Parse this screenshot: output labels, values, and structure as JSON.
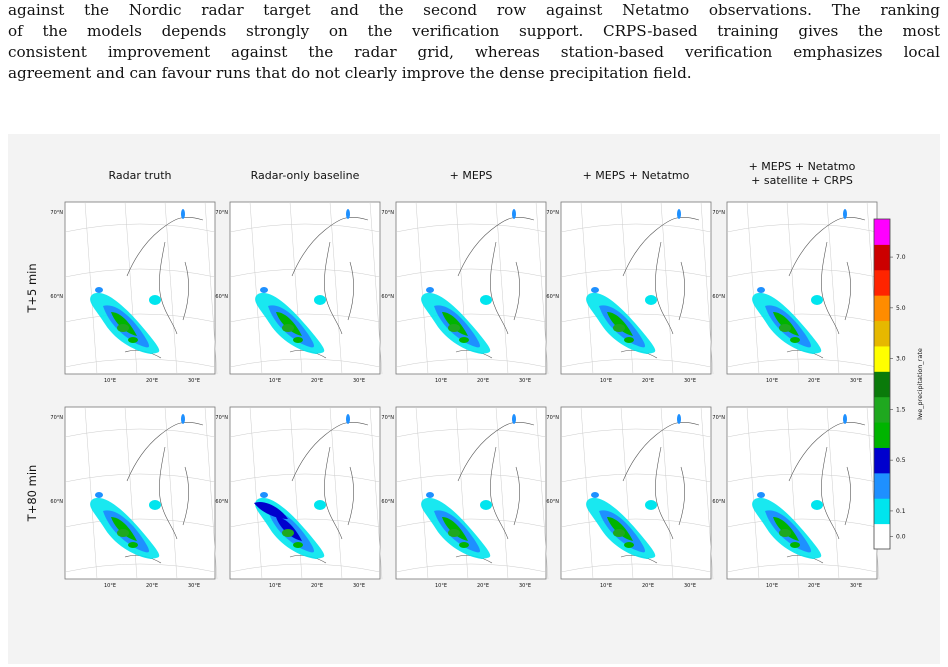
{
  "paragraph_lines": [
    "against the Nordic radar target and the second row against Netatmo observations. The ranking",
    "of the models depends strongly on the verification support. CRPS-based training gives the most",
    "consistent improvement against the radar grid, whereas station-based verification emphasizes local",
    "agreement and can favour runs that do not clearly improve the dense precipitation field."
  ],
  "figure": {
    "columns": [
      {
        "title_lines": [
          "Radar truth"
        ]
      },
      {
        "title_lines": [
          "Radar-only baseline"
        ]
      },
      {
        "title_lines": [
          "+ MEPS"
        ]
      },
      {
        "title_lines": [
          "+ MEPS + Netatmo"
        ]
      },
      {
        "title_lines": [
          "+ MEPS + Netatmo",
          "+ satellite + CRPS"
        ]
      }
    ],
    "rows": [
      {
        "label": "T+5 min"
      },
      {
        "label": "T+80 min"
      }
    ],
    "lat_labels": [
      "70°N",
      "60°N"
    ],
    "lon_labels": [
      "10°E",
      "20°E",
      "30°E"
    ],
    "colorbar": {
      "label": "lwe_precipitation_rate",
      "ticks": [
        "7.0",
        "5.0",
        "3.0",
        "1.5",
        "0.5",
        "0.1",
        "0.0"
      ],
      "colors": [
        "#ffffff",
        "#00e5ee",
        "#1e90ff",
        "#0000cd",
        "#00b400",
        "#1fa81f",
        "#0a7a0a",
        "#ffff00",
        "#e6b800",
        "#ff8c00",
        "#ff2400",
        "#cc0000",
        "#ff00ff"
      ]
    }
  }
}
